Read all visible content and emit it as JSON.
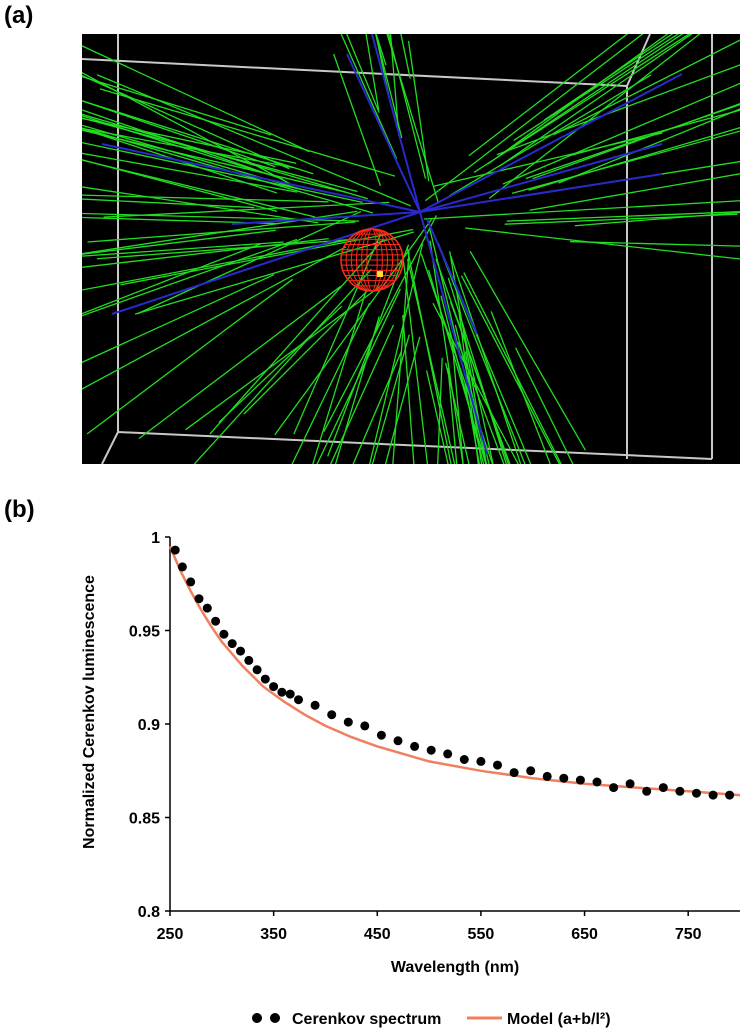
{
  "panels": {
    "a_label": "(a)",
    "b_label": "(b)"
  },
  "simulation": {
    "colors": {
      "background": "#000000",
      "box": "#c8c8c8",
      "tracks": "#22dd22",
      "primary": "#2222cc",
      "sphere": "#ff2a1a",
      "source": "#ffe033"
    }
  },
  "chart_data": {
    "type": "scatter",
    "xlabel": "Wavelength (nm)",
    "ylabel": "Normalized Cerenkov luminescence",
    "xlim": [
      250,
      800
    ],
    "ylim": [
      0.8,
      1.0
    ],
    "x_ticks": [
      "250",
      "350",
      "450",
      "550",
      "650",
      "750"
    ],
    "x_tick_values": [
      250,
      350,
      450,
      550,
      650,
      750
    ],
    "y_ticks": [
      "0.8",
      "0.85",
      "0.9",
      "0.95",
      "1"
    ],
    "y_tick_values": [
      0.8,
      0.85,
      0.9,
      0.95,
      1.0
    ],
    "grid": false,
    "legend": "bottom",
    "series": [
      {
        "name": "Cerenkov spectrum",
        "kind": "scatter",
        "color": "#000000",
        "x": [
          255,
          262,
          270,
          278,
          286,
          294,
          302,
          310,
          318,
          326,
          334,
          342,
          350,
          358,
          366,
          374,
          390,
          406,
          422,
          438,
          454,
          470,
          486,
          502,
          518,
          534,
          550,
          566,
          582,
          598,
          614,
          630,
          646,
          662,
          678,
          694,
          710,
          726,
          742,
          758,
          774,
          790
        ],
        "y": [
          0.993,
          0.984,
          0.976,
          0.967,
          0.962,
          0.955,
          0.948,
          0.943,
          0.939,
          0.934,
          0.929,
          0.924,
          0.92,
          0.917,
          0.916,
          0.913,
          0.91,
          0.905,
          0.901,
          0.899,
          0.894,
          0.891,
          0.888,
          0.886,
          0.884,
          0.881,
          0.88,
          0.878,
          0.874,
          0.875,
          0.872,
          0.871,
          0.87,
          0.869,
          0.866,
          0.868,
          0.864,
          0.866,
          0.864,
          0.863,
          0.862,
          0.862
        ]
      },
      {
        "name": "Model (a+b/l²)",
        "kind": "line",
        "color": "#f07f5f",
        "x": [
          250,
          260,
          270,
          280,
          290,
          300,
          320,
          340,
          360,
          380,
          400,
          425,
          450,
          475,
          500,
          550,
          600,
          650,
          700,
          750,
          800
        ],
        "y": [
          0.995,
          0.982,
          0.971,
          0.961,
          0.952,
          0.944,
          0.931,
          0.92,
          0.912,
          0.905,
          0.899,
          0.893,
          0.888,
          0.884,
          0.88,
          0.875,
          0.871,
          0.868,
          0.866,
          0.864,
          0.862
        ]
      }
    ]
  }
}
